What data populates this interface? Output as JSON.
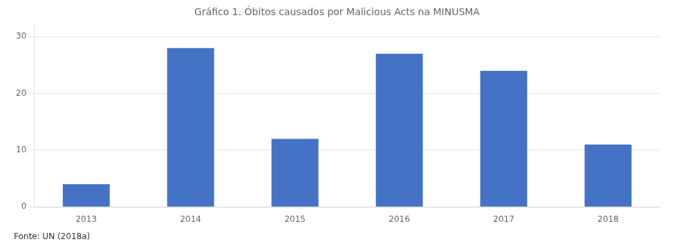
{
  "chart_data": {
    "type": "bar",
    "title": "Gráfico 1. Óbitos causados por Malicious Acts na MINUSMA",
    "annotations": [
      "Fonte: UN (2018a)"
    ],
    "categories": [
      "2013",
      "2014",
      "2015",
      "2016",
      "2017",
      "2018"
    ],
    "values": [
      4,
      28,
      12,
      27,
      24,
      11
    ],
    "color": "#4472C4",
    "ylim": [
      0,
      32
    ],
    "yticks": [
      0,
      10,
      20,
      30
    ],
    "grid": true
  }
}
